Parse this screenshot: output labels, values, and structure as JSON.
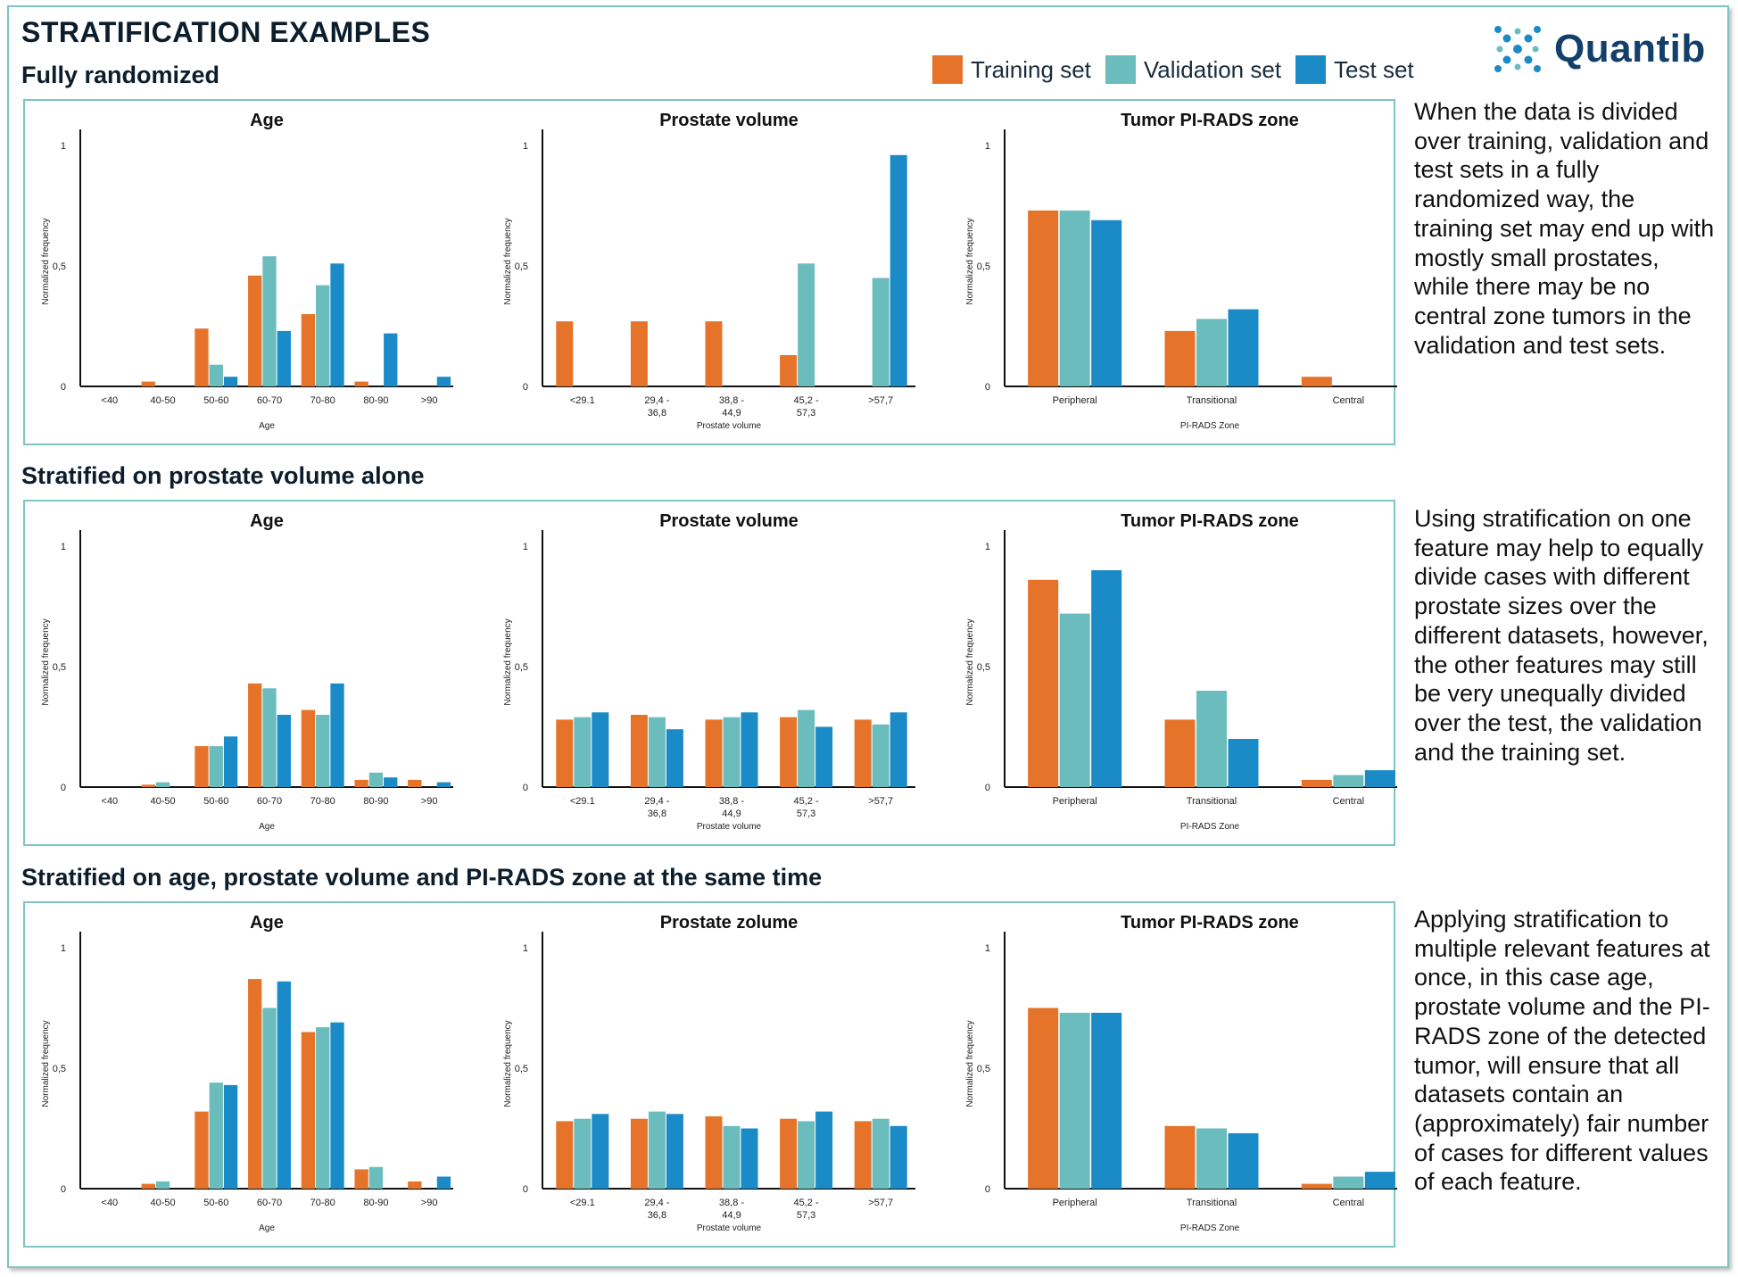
{
  "header": {
    "title": "STRATIFICATION EXAMPLES",
    "logo_text": "Quantib",
    "legend": [
      {
        "label": "Training set",
        "color": "#E5732A"
      },
      {
        "label": "Validation set",
        "color": "#6BBCBD"
      },
      {
        "label": "Test set",
        "color": "#1A8BC6"
      }
    ]
  },
  "sections": [
    {
      "title": "Fully randomized",
      "description": "When the data is divided over training, validation and test sets in a fully randomized way, the training set may end up with mostly small prostates, while there may be no central zone tumors in the validation and test sets."
    },
    {
      "title": "Stratified on prostate volume alone",
      "description": "Using stratification on one feature may help to equally divide cases with different prostate sizes over the different datasets, however, the other features may still be very unequally divided over the test, the validation and the training set."
    },
    {
      "title": "Stratified on age, prostate volume and PI-RADS zone at the same time",
      "description": "Applying stratification to multiple relevant features at once, in this case age, prostate volume and the PI-RADS zone of the detected tumor, will ensure that all datasets contain an (approximately) fair number of cases for different values of each feature."
    }
  ],
  "chart_data": [
    {
      "section": 0,
      "type": "bar",
      "title": "Age",
      "xlabel": "Age",
      "ylabel": "Normalized frequency",
      "ylim": [
        0,
        1
      ],
      "yticks": [
        "0",
        "0,5",
        "1"
      ],
      "categories": [
        "<40",
        "40-50",
        "50-60",
        "60-70",
        "70-80",
        "80-90",
        ">90"
      ],
      "series": [
        {
          "name": "Training set",
          "values": [
            0,
            0.02,
            0.24,
            0.46,
            0.3,
            0.02,
            0
          ]
        },
        {
          "name": "Validation set",
          "values": [
            0,
            0,
            0.09,
            0.54,
            0.42,
            0,
            0
          ]
        },
        {
          "name": "Test set",
          "values": [
            0,
            0,
            0.04,
            0.23,
            0.51,
            0.22,
            0.04
          ]
        }
      ]
    },
    {
      "section": 0,
      "type": "bar",
      "title": "Prostate volume",
      "xlabel": "Prostate volume",
      "ylabel": "Normalized frequency",
      "ylim": [
        0,
        1
      ],
      "yticks": [
        "0",
        "0,5",
        "1"
      ],
      "categories": [
        "<29.1",
        "29,4 - 36,8",
        "38,8 - 44,9",
        "45,2 - 57,3",
        ">57,7"
      ],
      "series": [
        {
          "name": "Training set",
          "values": [
            0.27,
            0.27,
            0.27,
            0.13,
            0
          ]
        },
        {
          "name": "Validation set",
          "values": [
            0,
            0,
            0,
            0.51,
            0.45
          ]
        },
        {
          "name": "Test set",
          "values": [
            0,
            0,
            0,
            0,
            0.96
          ]
        }
      ]
    },
    {
      "section": 0,
      "type": "bar",
      "title": "Tumor PI-RADS zone",
      "xlabel": "PI-RADS Zone",
      "ylabel": "Normalized frequency",
      "ylim": [
        0,
        1
      ],
      "yticks": [
        "0",
        "0,5",
        "1"
      ],
      "categories": [
        "Peripheral",
        "Transitional",
        "Central"
      ],
      "series": [
        {
          "name": "Training set",
          "values": [
            0.73,
            0.23,
            0.04
          ]
        },
        {
          "name": "Validation set",
          "values": [
            0.73,
            0.28,
            0
          ]
        },
        {
          "name": "Test set",
          "values": [
            0.69,
            0.32,
            0
          ]
        }
      ]
    },
    {
      "section": 1,
      "type": "bar",
      "title": "Age",
      "xlabel": "Age",
      "ylabel": "Normalized frequency",
      "ylim": [
        0,
        1
      ],
      "yticks": [
        "0",
        "0,5",
        "1"
      ],
      "categories": [
        "<40",
        "40-50",
        "50-60",
        "60-70",
        "70-80",
        "80-90",
        ">90"
      ],
      "series": [
        {
          "name": "Training set",
          "values": [
            0,
            0.01,
            0.17,
            0.43,
            0.32,
            0.03,
            0.03
          ]
        },
        {
          "name": "Validation set",
          "values": [
            0,
            0.02,
            0.17,
            0.41,
            0.3,
            0.06,
            0
          ]
        },
        {
          "name": "Test set",
          "values": [
            0,
            0,
            0.21,
            0.3,
            0.43,
            0.04,
            0.02
          ]
        }
      ]
    },
    {
      "section": 1,
      "type": "bar",
      "title": "Prostate volume",
      "xlabel": "Prostate volume",
      "ylabel": "Normalized frequency",
      "ylim": [
        0,
        1
      ],
      "yticks": [
        "0",
        "0,5",
        "1"
      ],
      "categories": [
        "<29.1",
        "29,4 - 36,8",
        "38,8 - 44,9",
        "45,2 - 57,3",
        ">57,7"
      ],
      "series": [
        {
          "name": "Training set",
          "values": [
            0.28,
            0.3,
            0.28,
            0.29,
            0.28
          ]
        },
        {
          "name": "Validation set",
          "values": [
            0.29,
            0.29,
            0.29,
            0.32,
            0.26
          ]
        },
        {
          "name": "Test set",
          "values": [
            0.31,
            0.24,
            0.31,
            0.25,
            0.31
          ]
        }
      ]
    },
    {
      "section": 1,
      "type": "bar",
      "title": "Tumor PI-RADS zone",
      "xlabel": "PI-RADS Zone",
      "ylabel": "Normalized frequency",
      "ylim": [
        0,
        1
      ],
      "yticks": [
        "0",
        "0,5",
        "1"
      ],
      "categories": [
        "Peripheral",
        "Transitional",
        "Central"
      ],
      "series": [
        {
          "name": "Training set",
          "values": [
            0.86,
            0.28,
            0.03
          ]
        },
        {
          "name": "Validation set",
          "values": [
            0.72,
            0.4,
            0.05
          ]
        },
        {
          "name": "Test set",
          "values": [
            0.9,
            0.2,
            0.07
          ]
        }
      ]
    },
    {
      "section": 2,
      "type": "bar",
      "title": "Age",
      "xlabel": "Age",
      "ylabel": "Normalized frequency",
      "ylim": [
        0,
        1
      ],
      "yticks": [
        "0",
        "0,5",
        "1"
      ],
      "categories": [
        "<40",
        "40-50",
        "50-60",
        "60-70",
        "70-80",
        "80-90",
        ">90"
      ],
      "series": [
        {
          "name": "Training set",
          "values": [
            0,
            0.02,
            0.32,
            0.87,
            0.65,
            0.08,
            0.03
          ]
        },
        {
          "name": "Validation set",
          "values": [
            0,
            0.03,
            0.44,
            0.75,
            0.67,
            0.09,
            0
          ]
        },
        {
          "name": "Test set",
          "values": [
            0,
            0,
            0.43,
            0.86,
            0.69,
            0,
            0.05
          ]
        }
      ]
    },
    {
      "section": 2,
      "type": "bar",
      "title": "Prostate zolume",
      "xlabel": "Prostate volume",
      "ylabel": "Normalized frequency",
      "ylim": [
        0,
        1
      ],
      "yticks": [
        "0",
        "0,5",
        "1"
      ],
      "categories": [
        "<29.1",
        "29,4 - 36,8",
        "38,8 - 44,9",
        "45,2 - 57,3",
        ">57,7"
      ],
      "series": [
        {
          "name": "Training set",
          "values": [
            0.28,
            0.29,
            0.3,
            0.29,
            0.28
          ]
        },
        {
          "name": "Validation set",
          "values": [
            0.29,
            0.32,
            0.26,
            0.28,
            0.29
          ]
        },
        {
          "name": "Test set",
          "values": [
            0.31,
            0.31,
            0.25,
            0.32,
            0.26
          ]
        }
      ]
    },
    {
      "section": 2,
      "type": "bar",
      "title": "Tumor PI-RADS zone",
      "xlabel": "PI-RADS Zone",
      "ylabel": "Normalized frequency",
      "ylim": [
        0,
        1
      ],
      "yticks": [
        "0",
        "0,5",
        "1"
      ],
      "categories": [
        "Peripheral",
        "Transitional",
        "Central"
      ],
      "series": [
        {
          "name": "Training set",
          "values": [
            0.75,
            0.26,
            0.02
          ]
        },
        {
          "name": "Validation set",
          "values": [
            0.73,
            0.25,
            0.05
          ]
        },
        {
          "name": "Test set",
          "values": [
            0.73,
            0.23,
            0.07
          ]
        }
      ]
    }
  ]
}
